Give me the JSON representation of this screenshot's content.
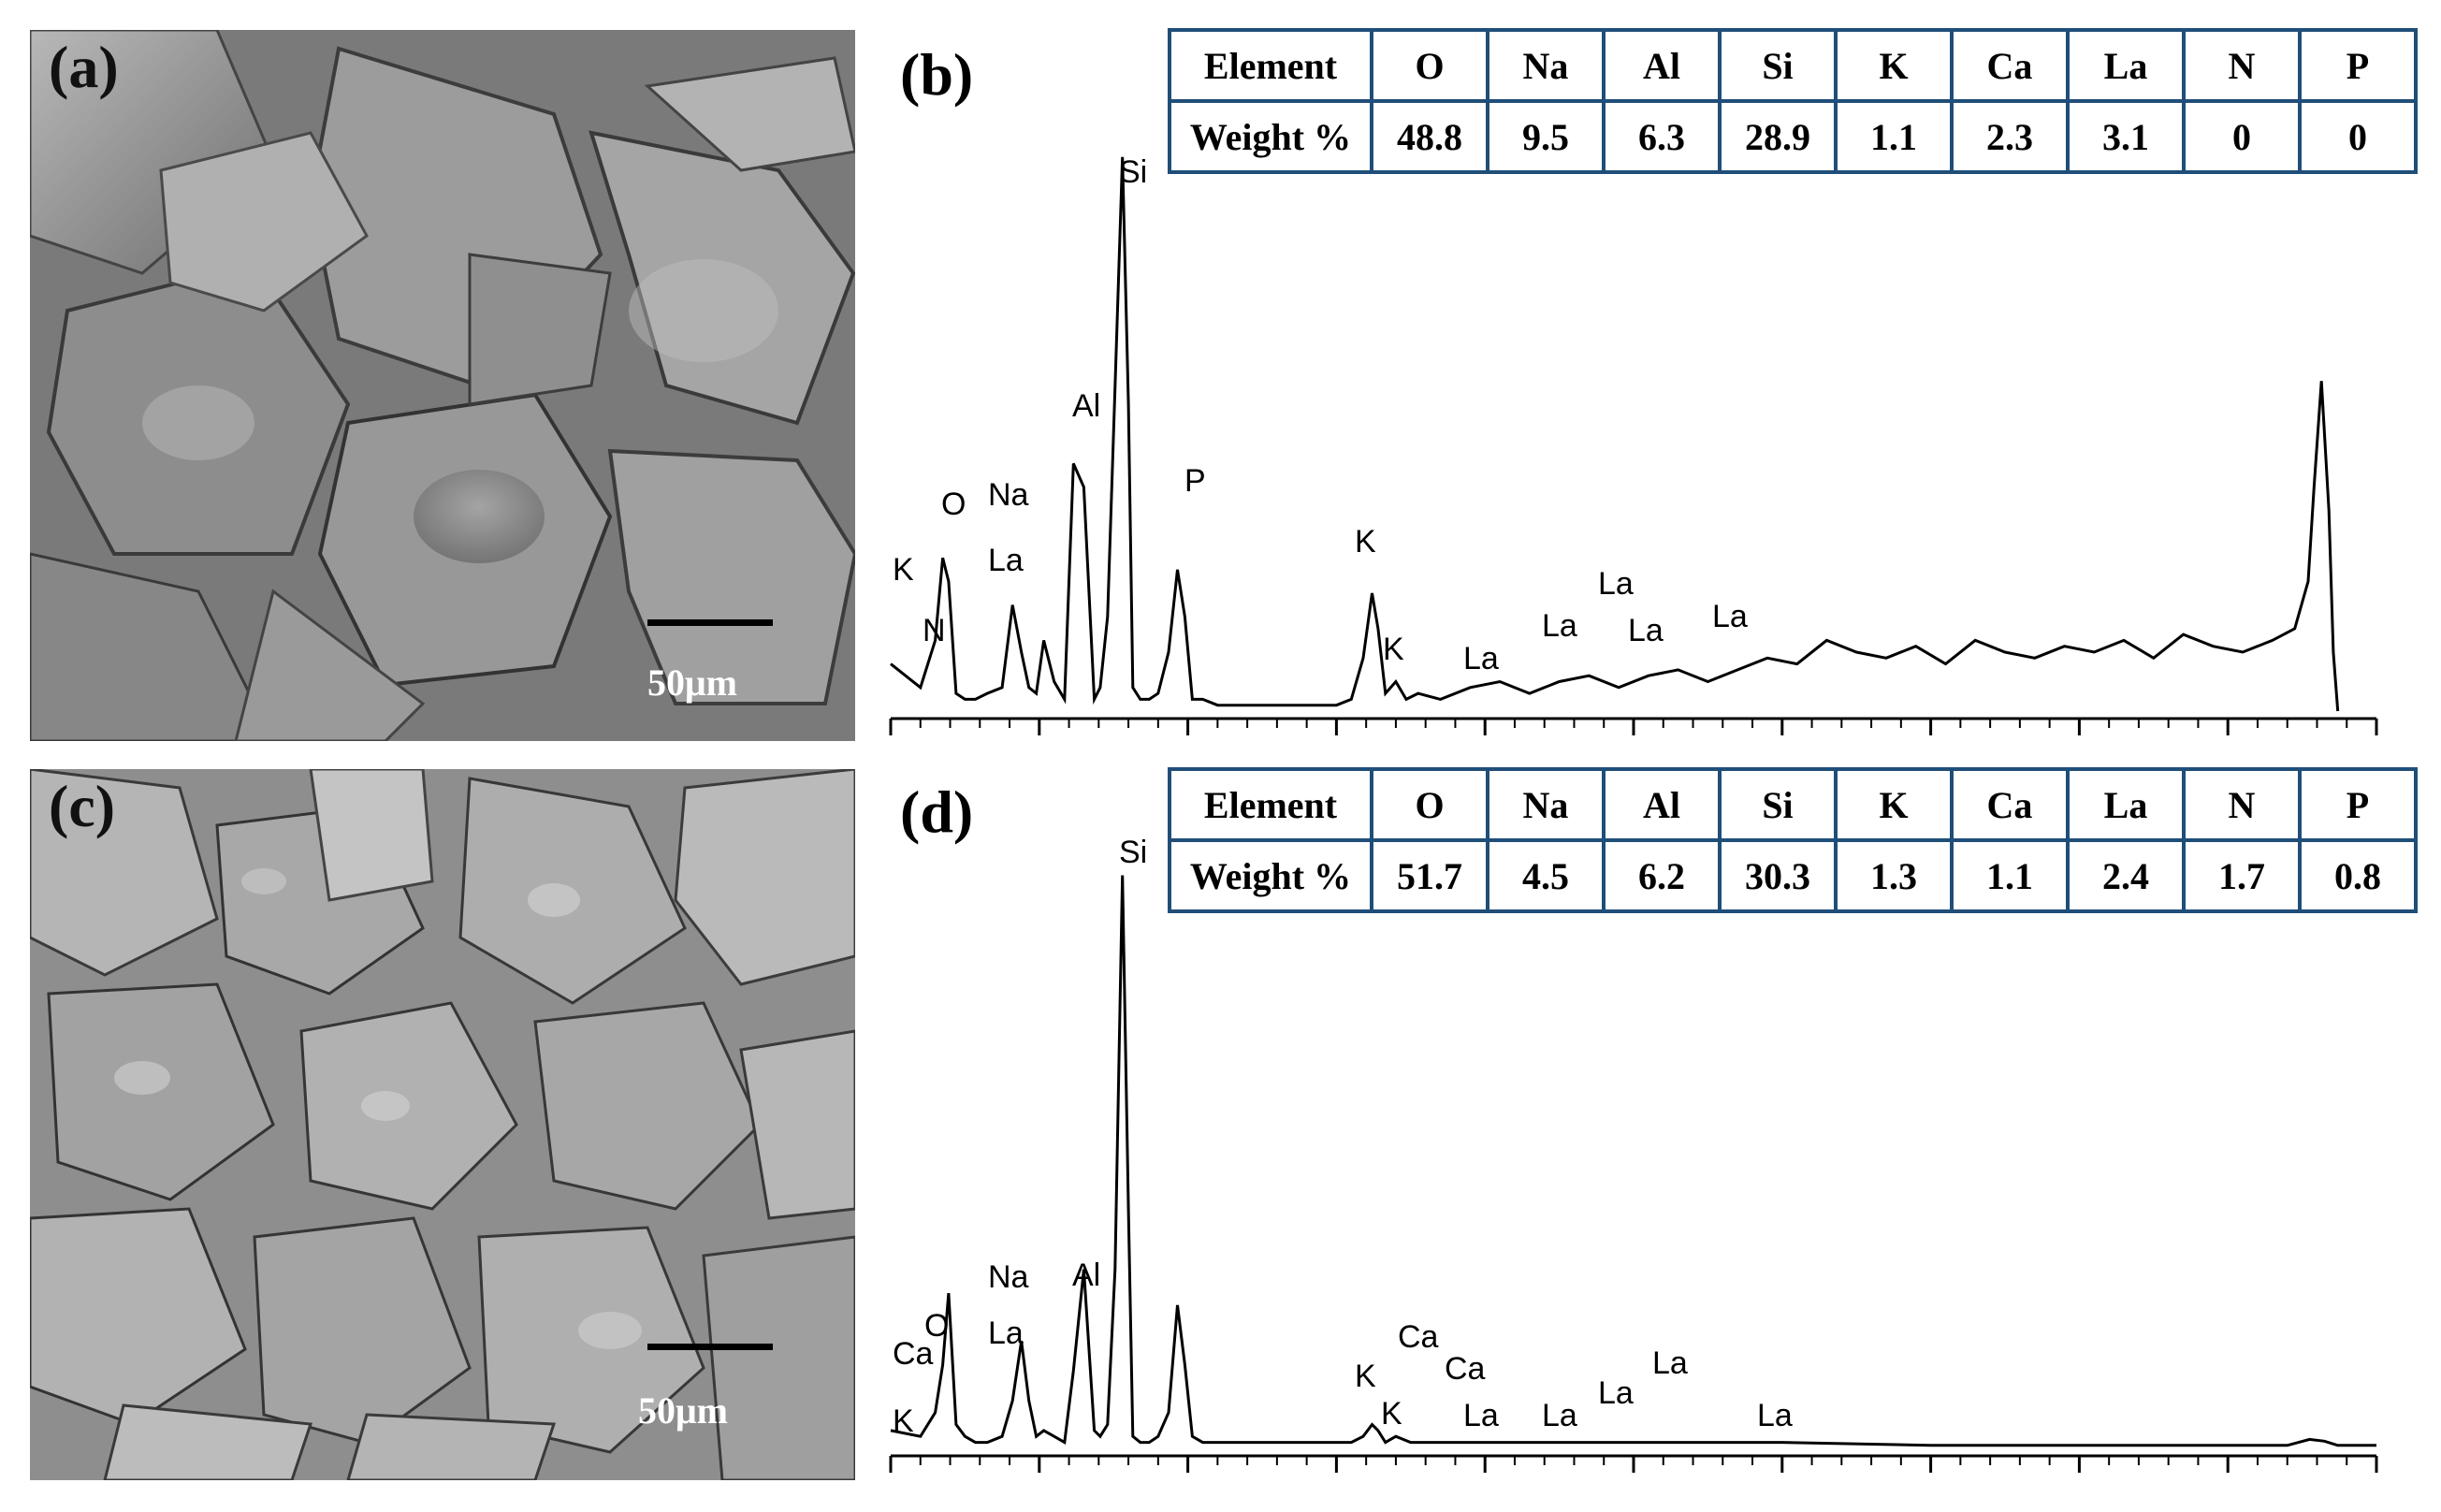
{
  "panels": {
    "a": {
      "label": "(a)",
      "scale_label": "50μm"
    },
    "b": {
      "label": "(b)"
    },
    "c": {
      "label": "(c)",
      "scale_label": "50μm"
    },
    "d": {
      "label": "(d)"
    }
  },
  "tables": {
    "b": {
      "header": [
        "Element",
        "O",
        "Na",
        "Al",
        "Si",
        "K",
        "Ca",
        "La",
        "N",
        "P"
      ],
      "row_label": "Weight %",
      "values": [
        "48.8",
        "9.5",
        "6.3",
        "28.9",
        "1.1",
        "2.3",
        "3.1",
        "0",
        "0"
      ]
    },
    "d": {
      "header": [
        "Element",
        "O",
        "Na",
        "Al",
        "Si",
        "K",
        "Ca",
        "La",
        "N",
        "P"
      ],
      "row_label": "Weight %",
      "values": [
        "51.7",
        "4.5",
        "6.2",
        "30.3",
        "1.3",
        "1.1",
        "2.4",
        "1.7",
        "0.8"
      ]
    }
  },
  "chart_data": [
    {
      "type": "line",
      "panel": "(b)",
      "title": "",
      "xlabel": "",
      "ylabel": "",
      "x_units": "channel (0-100 across axis, unlabeled)",
      "xlim": [
        0,
        100
      ],
      "ylim": [
        0,
        100
      ],
      "series": [
        {
          "x": [
            0,
            2,
            3,
            3.5,
            3.9,
            4.4,
            5,
            5.7,
            6.5,
            7.5,
            8.2,
            8.8,
            9.3,
            9.8,
            10.3,
            11,
            11.7,
            12.3,
            13,
            13.7,
            14.1,
            14.6,
            15.1,
            15.6,
            16,
            16.3,
            16.8,
            17.4,
            18,
            18.7,
            19.3,
            19.8,
            20.3,
            21,
            22,
            24,
            26,
            28,
            30,
            31,
            31.8,
            32.4,
            32.8,
            33.3,
            34,
            34.7,
            35.5,
            37,
            39,
            41,
            43,
            45,
            47,
            49,
            51,
            53,
            55,
            57,
            59,
            61,
            63,
            65,
            67,
            69,
            71,
            73,
            75,
            77,
            79,
            81,
            83,
            85,
            87,
            89,
            91,
            93,
            94.5,
            95.4,
            95.8,
            96.3,
            96.8,
            97.1,
            97.4
          ],
          "y": [
            8,
            4,
            12,
            26,
            22,
            3,
            2,
            2,
            3,
            4,
            18,
            10,
            4,
            3,
            12,
            5,
            2,
            42,
            38,
            2,
            4,
            16,
            55,
            94,
            52,
            4,
            2,
            2,
            3,
            10,
            24,
            16,
            2,
            2,
            1,
            1,
            1,
            1,
            1,
            2,
            9,
            20,
            14,
            3,
            5,
            2,
            3,
            2,
            4,
            5,
            3,
            5,
            6,
            4,
            6,
            7,
            5,
            7,
            9,
            8,
            12,
            10,
            9,
            11,
            8,
            12,
            10,
            9,
            11,
            10,
            12,
            9,
            13,
            11,
            10,
            12,
            14,
            22,
            38,
            56,
            34,
            10,
            0
          ]
        }
      ],
      "peak_labels": [
        "K",
        "N",
        "O",
        "Na",
        "La",
        "Al",
        "Si",
        "P",
        "K",
        "K",
        "La",
        "La",
        "La",
        "La",
        "La"
      ]
    },
    {
      "type": "line",
      "panel": "(d)",
      "title": "",
      "xlabel": "",
      "ylabel": "",
      "x_units": "channel (0-100 across axis, unlabeled)",
      "xlim": [
        0,
        100
      ],
      "ylim": [
        0,
        100
      ],
      "series": [
        {
          "x": [
            0,
            2,
            3,
            3.5,
            3.9,
            4.4,
            5,
            5.7,
            6.5,
            7.5,
            8.2,
            8.8,
            9.3,
            9.8,
            10.3,
            11,
            11.7,
            12.3,
            13,
            13.7,
            14.1,
            14.6,
            15.1,
            15.6,
            16,
            16.3,
            16.8,
            17.4,
            18,
            18.7,
            19.3,
            19.8,
            20.3,
            21,
            22,
            24,
            26,
            28,
            30,
            31,
            31.8,
            32.4,
            32.8,
            33.3,
            34,
            35,
            37,
            40,
            50,
            60,
            70,
            80,
            90,
            94,
            95.5,
            96.5,
            97.4,
            100
          ],
          "y": [
            3,
            2,
            6,
            14,
            26,
            4,
            2,
            1,
            1,
            2,
            8,
            18,
            8,
            2,
            3,
            2,
            1,
            13,
            30,
            3,
            2,
            4,
            30,
            96,
            40,
            2,
            1,
            1,
            2,
            6,
            24,
            14,
            2,
            1,
            1,
            1,
            1,
            1,
            1,
            1,
            2,
            4,
            3,
            1,
            2,
            1,
            1,
            1,
            1,
            1,
            0.5,
            0.5,
            0.5,
            0.5,
            1.5,
            1.2,
            0.5,
            0.5
          ]
        }
      ],
      "peak_labels": [
        "K",
        "Ca",
        "O",
        "Na",
        "La",
        "Al",
        "Si",
        "K",
        "K",
        "Ca",
        "Ca",
        "La",
        "La",
        "La",
        "La",
        "La"
      ]
    }
  ]
}
